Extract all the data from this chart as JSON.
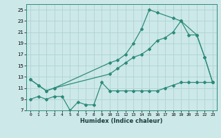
{
  "title": "",
  "xlabel": "Humidex (Indice chaleur)",
  "line_color": "#2d8b7a",
  "bg_color": "#cce8e8",
  "grid_color": "#aacfcf",
  "ylim": [
    7,
    26
  ],
  "xlim": [
    -0.5,
    23.5
  ],
  "yticks": [
    7,
    9,
    11,
    13,
    15,
    17,
    19,
    21,
    23,
    25
  ],
  "xticks": [
    0,
    1,
    2,
    3,
    4,
    5,
    6,
    7,
    8,
    9,
    10,
    11,
    12,
    13,
    14,
    15,
    16,
    17,
    18,
    19,
    20,
    21,
    22,
    23
  ],
  "x_top": [
    0,
    1,
    2,
    3,
    10,
    11,
    12,
    13,
    14,
    15,
    16,
    18,
    19,
    21,
    22,
    23
  ],
  "y_top": [
    12.5,
    11.5,
    10.5,
    11.0,
    15.5,
    16.0,
    17.0,
    19.0,
    21.5,
    25.0,
    24.5,
    23.5,
    23.0,
    20.5,
    16.5,
    12.0
  ],
  "x_mid": [
    0,
    1,
    2,
    3,
    10,
    11,
    12,
    13,
    14,
    15,
    16,
    17,
    18,
    19,
    20,
    21,
    22,
    23
  ],
  "y_mid": [
    12.5,
    11.5,
    10.5,
    11.0,
    13.5,
    14.5,
    15.5,
    16.5,
    17.0,
    18.0,
    19.5,
    20.0,
    21.0,
    23.0,
    20.5,
    20.5,
    16.5,
    12.0
  ],
  "x_bot": [
    0,
    1,
    2,
    3,
    4,
    5,
    6,
    7,
    8,
    9,
    10,
    11,
    12,
    13,
    14,
    15,
    16,
    17,
    18,
    19,
    20,
    21,
    22,
    23
  ],
  "y_bot": [
    9.0,
    9.5,
    9.0,
    9.5,
    9.5,
    7.0,
    8.5,
    8.0,
    8.0,
    12.0,
    10.5,
    10.5,
    10.5,
    10.5,
    10.5,
    10.5,
    10.5,
    11.0,
    11.5,
    12.0,
    12.0,
    12.0,
    12.0,
    12.0
  ]
}
